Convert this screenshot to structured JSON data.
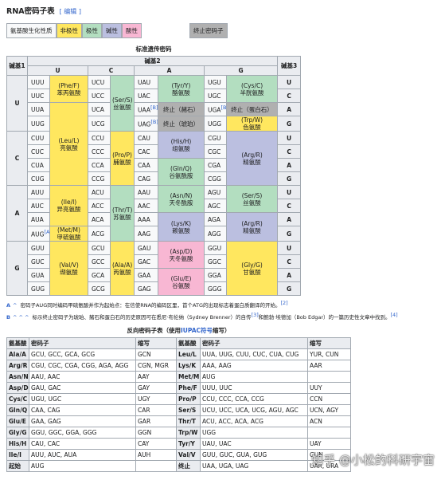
{
  "header": {
    "title": "RNA密码子表",
    "edit": "[ 编辑 ]"
  },
  "legend": {
    "items": [
      {
        "text": "氨基酸生化性质",
        "color": "#f8f9fa"
      },
      {
        "text": "非极性",
        "color": "#ffe75f"
      },
      {
        "text": "极性",
        "color": "#b3dec0"
      },
      {
        "text": "碱性",
        "color": "#bbbfe0"
      },
      {
        "text": "酸性",
        "color": "#f8b7d3"
      }
    ],
    "stop": {
      "text": "终止密码子",
      "color": "#b0b0b0"
    }
  },
  "codon_table": {
    "caption": "标准遗传密码",
    "base1": "碱基1",
    "base2": "碱基2",
    "base3": "碱基3",
    "bases": [
      "U",
      "C",
      "A",
      "G"
    ],
    "columns": [
      {
        "codons": [
          "UUU",
          "UUC",
          "UUA",
          "UUG",
          "CUU",
          "CUC",
          "CUA",
          "CUG",
          "AUU",
          "AUC",
          "AUA",
          {
            "text": "AUG",
            "ref": "[A]"
          },
          "GUU",
          "GUC",
          "GUA",
          "GUG"
        ],
        "blocks": [
          {
            "abbr": "(Phe/F)",
            "name": "苯丙氨酸",
            "rowspan": 2,
            "color": "#ffe75f"
          },
          {
            "abbr": "(Leu/L)",
            "name": "亮氨酸",
            "rowspan": 6,
            "color": "#ffe75f"
          },
          {
            "abbr": "(Ile/I)",
            "name": "异亮氨酸",
            "rowspan": 3,
            "color": "#ffe75f"
          },
          {
            "abbr": "(Met/M)",
            "name": "甲硫氨酸",
            "rowspan": 1,
            "color": "#ffe75f"
          },
          {
            "abbr": "(Val/V)",
            "name": "缬氨酸",
            "rowspan": 4,
            "color": "#ffe75f"
          }
        ]
      },
      {
        "codons": [
          "UCU",
          "UCC",
          "UCA",
          "UCG",
          "CCU",
          "CCC",
          "CCA",
          "CCG",
          "ACU",
          "ACC",
          "ACA",
          "ACG",
          "GCU",
          "GCC",
          "GCA",
          "GCG"
        ],
        "blocks": [
          {
            "abbr": "(Ser/S)",
            "name": "丝氨酸",
            "rowspan": 4,
            "color": "#b3dec0"
          },
          {
            "abbr": "(Pro/P)",
            "name": "脯氨酸",
            "rowspan": 4,
            "color": "#ffe75f"
          },
          {
            "abbr": "(Thr/T)",
            "name": "苏氨酸",
            "rowspan": 4,
            "color": "#b3dec0"
          },
          {
            "abbr": "(Ala/A)",
            "name": "丙氨酸",
            "rowspan": 4,
            "color": "#ffe75f"
          }
        ]
      },
      {
        "codons": [
          "UAU",
          "UAC",
          {
            "text": "UAA",
            "ref": "[B]"
          },
          {
            "text": "UAG",
            "ref": "[B]"
          },
          "CAU",
          "CAC",
          "CAA",
          "CAG",
          "AAU",
          "AAC",
          "AAA",
          "AAG",
          "GAU",
          "GAC",
          "GAA",
          "GAG"
        ],
        "blocks": [
          {
            "abbr": "(Tyr/Y)",
            "name": "酪氨酸",
            "rowspan": 2,
            "color": "#b3dec0"
          },
          {
            "name": "终止（赭石）",
            "rowspan": 1,
            "color": "#b0b0b0"
          },
          {
            "name": "终止（琥珀）",
            "rowspan": 1,
            "color": "#b0b0b0"
          },
          {
            "abbr": "(His/H)",
            "name": "组氨酸",
            "rowspan": 2,
            "color": "#bbbfe0"
          },
          {
            "abbr": "(Gln/Q)",
            "name": "谷氨酰胺",
            "rowspan": 2,
            "color": "#b3dec0"
          },
          {
            "abbr": "(Asn/N)",
            "name": "天冬酰胺",
            "rowspan": 2,
            "color": "#b3dec0"
          },
          {
            "abbr": "(Lys/K)",
            "name": "赖氨酸",
            "rowspan": 2,
            "color": "#bbbfe0"
          },
          {
            "abbr": "(Asp/D)",
            "name": "天冬氨酸",
            "rowspan": 2,
            "color": "#f8b7d3"
          },
          {
            "abbr": "(Glu/E)",
            "name": "谷氨酸",
            "rowspan": 2,
            "color": "#f8b7d3"
          }
        ]
      },
      {
        "codons": [
          "UGU",
          "UGC",
          {
            "text": "UGA",
            "ref": "[B]"
          },
          "UGG",
          "CGU",
          "CGC",
          "CGA",
          "CGG",
          "AGU",
          "AGC",
          "AGA",
          "AGG",
          "GGU",
          "GGC",
          "GGA",
          "GGG"
        ],
        "blocks": [
          {
            "abbr": "(Cys/C)",
            "name": "半胱氨酸",
            "rowspan": 2,
            "color": "#b3dec0"
          },
          {
            "name": "终止（蛋白石）",
            "rowspan": 1,
            "color": "#b0b0b0"
          },
          {
            "abbr": "(Trp/W)",
            "name": "色氨酸",
            "rowspan": 1,
            "color": "#ffe75f"
          },
          {
            "abbr": "(Arg/R)",
            "name": "精氨酸",
            "rowspan": 4,
            "color": "#bbbfe0"
          },
          {
            "abbr": "(Ser/S)",
            "name": "丝氨酸",
            "rowspan": 2,
            "color": "#b3dec0"
          },
          {
            "abbr": "(Arg/R)",
            "name": "精氨酸",
            "rowspan": 2,
            "color": "#bbbfe0"
          },
          {
            "abbr": "(Gly/G)",
            "name": "甘氨酸",
            "rowspan": 4,
            "color": "#ffe75f"
          }
        ]
      }
    ]
  },
  "notes": [
    {
      "marker": "A",
      "carets": "^",
      "parts": [
        {
          "text": "密码子AUG同时编码甲硫氨酸并作为起始点：在信使RNA的编码区里，首个ATG的出现标志着蛋白质翻译的开始。"
        },
        {
          "ref": "[2]"
        }
      ]
    },
    {
      "marker": "B",
      "carets": "^ ^ ^",
      "parts": [
        {
          "text": "标示终止密码子为琥珀、赭石和蛋白石的历史原因可在悉尼·布伦纳（Sydney Brenner）的自传"
        },
        {
          "ref": "[3]"
        },
        {
          "text": "和鲍勃·埃德加（Bob Edgar）的一篇历史性文章中找到。"
        },
        {
          "ref": "[4]"
        }
      ]
    }
  ],
  "reverse_table": {
    "caption": [
      "反向密码子表（使用",
      "IUPAC符号",
      "缩写）"
    ],
    "headers": [
      "氨基酸",
      "密码子",
      "缩写",
      "氨基酸",
      "密码子",
      "缩写"
    ],
    "rows": [
      [
        "Ala/A",
        "GCU, GCC, GCA, GCG",
        "GCN",
        "Leu/L",
        "UUA, UUG, CUU, CUC, CUA, CUG",
        "YUR, CUN"
      ],
      [
        "Arg/R",
        "CGU, CGC, CGA, CGG, AGA, AGG",
        "CGN, MGR",
        "Lys/K",
        "AAA, AAG",
        "AAR"
      ],
      [
        "Asn/N",
        "AAU, AAC",
        "AAY",
        "Met/M",
        "AUG",
        null
      ],
      [
        "Asp/D",
        "GAU, GAC",
        "GAY",
        "Phe/F",
        "UUU, UUC",
        "UUY"
      ],
      [
        "Cys/C",
        "UGU, UGC",
        "UGY",
        "Pro/P",
        "CCU, CCC, CCA, CCG",
        "CCN"
      ],
      [
        "Gln/Q",
        "CAA, CAG",
        "CAR",
        "Ser/S",
        "UCU, UCC, UCA, UCG, AGU, AGC",
        "UCN, AGY"
      ],
      [
        "Glu/E",
        "GAA, GAG",
        "GAR",
        "Thr/T",
        "ACU, ACC, ACA, ACG",
        "ACN"
      ],
      [
        "Gly/G",
        "GGU, GGC, GGA, GGG",
        "GGN",
        "Trp/W",
        "UGG",
        null
      ],
      [
        "His/H",
        "CAU, CAC",
        "CAY",
        "Tyr/Y",
        "UAU, UAC",
        "UAY"
      ],
      [
        "Ile/I",
        "AUU, AUC, AUA",
        "AUH",
        "Val/V",
        "GUU, GUC, GUA, GUG",
        "GUN"
      ],
      [
        "起始",
        "AUG",
        null,
        "终止",
        "UAA, UGA, UAG",
        "UAR, URA"
      ]
    ]
  },
  "watermark": "知乎 @小松的科研宇宙"
}
